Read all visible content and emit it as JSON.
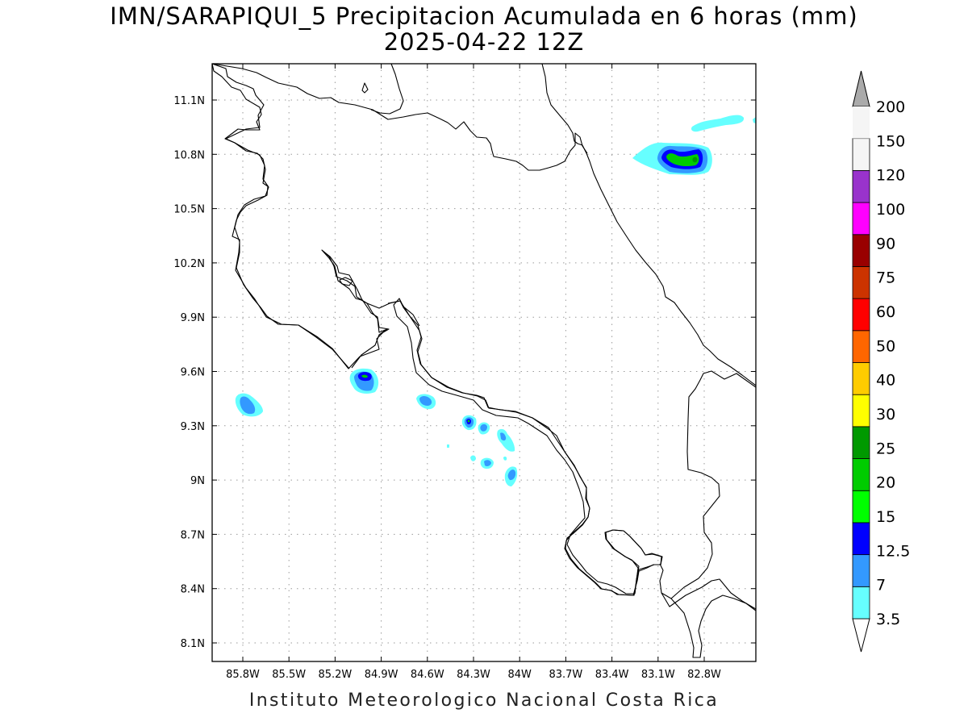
{
  "header": {
    "title": "IMN/SARAPIQUI_5 Precipitacion Acumulada en 6 horas (mm)",
    "subtitle": "2025-04-22 12Z"
  },
  "footer": {
    "credit": "Instituto Meteorologico Nacional Costa Rica"
  },
  "map": {
    "lon_range": [
      -86.0,
      -83.0
    ],
    "lat_range": [
      8.0,
      11.2
    ],
    "lon_ticks": [
      {
        "value": -85.8,
        "label": "85.8W"
      },
      {
        "value": -85.5,
        "label": "85.5W"
      },
      {
        "value": -85.2,
        "label": "85.2W"
      },
      {
        "value": -84.9,
        "label": "84.9W"
      },
      {
        "value": -84.6,
        "label": "84.6W"
      },
      {
        "value": -84.3,
        "label": "84.3W"
      },
      {
        "value": -84.0,
        "label": "84W"
      },
      {
        "value": -83.7,
        "label": "83.7W"
      },
      {
        "value": -83.4,
        "label": "83.4W"
      },
      {
        "value": -83.1,
        "label": "83.1W"
      },
      {
        "value": -82.8,
        "label": "82.8W"
      }
    ],
    "lat_ticks": [
      {
        "value": 11.1,
        "label": "11.1N"
      },
      {
        "value": 10.8,
        "label": "10.8N"
      },
      {
        "value": 10.5,
        "label": "10.5N"
      },
      {
        "value": 10.2,
        "label": "10.2N"
      },
      {
        "value": 9.9,
        "label": "9.9N"
      },
      {
        "value": 9.6,
        "label": "9.6N"
      },
      {
        "value": 9.3,
        "label": "9.3N"
      },
      {
        "value": 9.0,
        "label": "9N"
      },
      {
        "value": 8.7,
        "label": "8.7N"
      },
      {
        "value": 8.4,
        "label": "8.4N"
      },
      {
        "value": 8.1,
        "label": "8.1N"
      }
    ],
    "grid": true
  },
  "colorbar": {
    "levels": [
      "3.5",
      "7",
      "12.5",
      "15",
      "20",
      "25",
      "30",
      "40",
      "50",
      "60",
      "75",
      "90",
      "100",
      "120",
      "150",
      "200"
    ],
    "colors": [
      "#66ffff",
      "#3399ff",
      "#0000ff",
      "#00ff00",
      "#00cc00",
      "#009900",
      "#ffff00",
      "#ffcc00",
      "#ff6600",
      "#ff0000",
      "#cc3300",
      "#990000",
      "#ff00ff",
      "#9933cc",
      "#f5f5f5",
      "#aaaaaa"
    ],
    "over_color": "#aaaaaa",
    "under_color": "#ffffff"
  }
}
